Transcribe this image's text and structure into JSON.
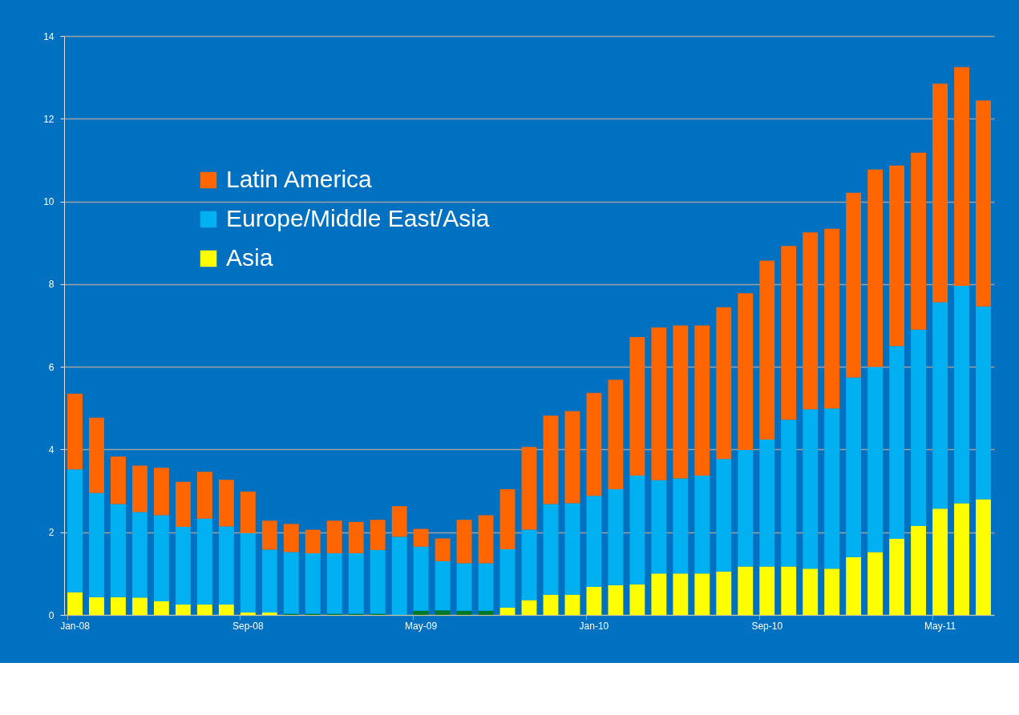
{
  "chart_data": {
    "type": "bar",
    "stacked": true,
    "legend": "top left",
    "grid": "y",
    "categories": [
      "Jan-08",
      null,
      null,
      null,
      null,
      null,
      null,
      null,
      "Sep-08",
      null,
      null,
      null,
      null,
      null,
      null,
      null,
      "May-09",
      null,
      null,
      null,
      null,
      null,
      null,
      null,
      "Jan-10",
      null,
      null,
      null,
      null,
      null,
      null,
      null,
      "Sep-10",
      null,
      null,
      null,
      null,
      null,
      null,
      null,
      "May-11",
      null,
      null
    ],
    "ylim": [
      0,
      14
    ],
    "yticks": [
      0,
      2,
      4,
      6,
      8,
      10,
      12,
      14
    ],
    "series": [
      {
        "name": "Asia",
        "color": "#ffff00",
        "colors": [
          "#ffff00",
          "#ffff00",
          "#ffff00",
          "#ffff00",
          "#ffff00",
          "#ffff00",
          "#ffff00",
          "#ffff00",
          "#ffff00",
          "#ffff00",
          "#00782a",
          "#00782a",
          "#00782a",
          "#00782a",
          "#00782a",
          "#ffff00",
          "#00782a",
          "#00782a",
          "#00782a",
          "#00782a",
          "#ffff00",
          "#ffff00",
          "#ffff00",
          "#ffff00",
          "#ffff00",
          "#ffff00",
          "#ffff00",
          "#ffff00",
          "#ffff00",
          "#ffff00",
          "#ffff00",
          "#ffff00",
          "#ffff00",
          "#ffff00",
          "#ffff00",
          "#ffff00",
          "#ffff00",
          "#ffff00",
          "#ffff00",
          "#ffff00",
          "#ffff00",
          "#ffff00",
          "#ffff00"
        ],
        "values": [
          0.55,
          0.43,
          0.43,
          0.42,
          0.33,
          0.25,
          0.25,
          0.25,
          0.06,
          0.06,
          0.03,
          0.03,
          0.03,
          0.03,
          0.03,
          0,
          0.1,
          0.11,
          0.1,
          0.1,
          0.18,
          0.36,
          0.49,
          0.49,
          0.68,
          0.72,
          0.74,
          1.0,
          1.0,
          1.0,
          1.05,
          1.17,
          1.17,
          1.17,
          1.12,
          1.12,
          1.4,
          1.52,
          1.84,
          2.15,
          2.57,
          2.7,
          2.8
        ]
      },
      {
        "name": "Europe/Middle East/Asia",
        "color": "#00b0f0",
        "values": [
          2.97,
          2.52,
          2.25,
          2.07,
          2.08,
          1.88,
          2.08,
          1.89,
          1.92,
          1.52,
          1.49,
          1.46,
          1.46,
          1.46,
          1.54,
          1.89,
          1.55,
          1.19,
          1.15,
          1.15,
          1.41,
          1.7,
          2.19,
          2.21,
          2.2,
          2.32,
          2.63,
          2.26,
          2.3,
          2.37,
          2.72,
          2.82,
          3.07,
          3.55,
          3.85,
          3.87,
          4.34,
          4.48,
          4.66,
          4.75,
          4.99,
          5.26,
          4.66
        ]
      },
      {
        "name": "Latin America",
        "color": "#ff6600",
        "values": [
          1.83,
          1.82,
          1.15,
          1.12,
          1.15,
          1.09,
          1.13,
          1.13,
          1.0,
          0.7,
          0.68,
          0.57,
          0.79,
          0.76,
          0.73,
          0.74,
          0.43,
          0.55,
          1.05,
          1.16,
          1.45,
          2.0,
          2.14,
          2.23,
          2.49,
          2.65,
          3.35,
          3.69,
          3.7,
          3.63,
          3.67,
          3.79,
          4.33,
          4.2,
          4.28,
          4.35,
          4.47,
          4.77,
          4.37,
          4.28,
          5.29,
          5.29,
          4.98
        ]
      }
    ]
  }
}
